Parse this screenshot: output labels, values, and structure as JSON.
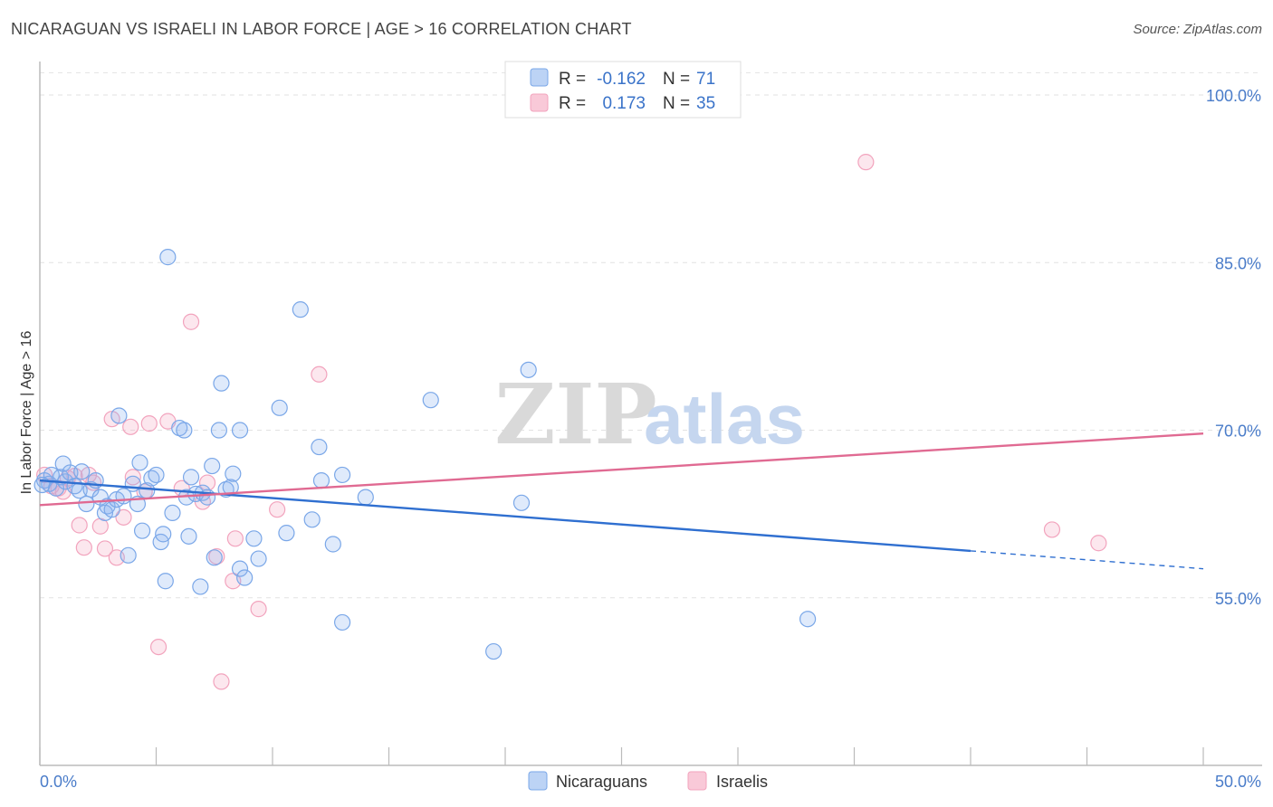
{
  "header": {
    "title": "NICARAGUAN VS ISRAELI IN LABOR FORCE | AGE > 16 CORRELATION CHART",
    "source": "Source: ZipAtlas.com"
  },
  "chart_data": {
    "type": "scatter",
    "title": "NICARAGUAN VS ISRAELI IN LABOR FORCE | AGE > 16 CORRELATION CHART",
    "ylabel": "In Labor Force | Age > 16",
    "xlim": [
      0,
      50
    ],
    "ylim": [
      40,
      103
    ],
    "x_tick_labels": [
      "0.0%",
      "50.0%"
    ],
    "y_ticks": [
      100,
      85,
      70,
      55
    ],
    "y_tick_labels": [
      "100.0%",
      "85.0%",
      "70.0%",
      "55.0%"
    ],
    "watermark": {
      "zip": "ZIP",
      "atlas": "atlas"
    },
    "legend": {
      "rows": [
        {
          "r_label": "R =",
          "r_value": "-0.162",
          "n_label": "N =",
          "n_value": "71"
        },
        {
          "r_label": "R =",
          "r_value": "0.173",
          "n_label": "N =",
          "n_value": "35"
        }
      ]
    },
    "series": [
      {
        "name": "Nicaraguans",
        "color": "#7aa7e8",
        "trend_color": "#2f6fd0",
        "trend": {
          "x0": 0,
          "y0": 65.5,
          "x1": 40,
          "y1": 59.2,
          "dash_to_x": 50,
          "dash_to_y": 57.6
        },
        "points": [
          [
            0.2,
            65.5
          ],
          [
            0.4,
            65.2
          ],
          [
            0.5,
            66.0
          ],
          [
            0.7,
            64.8
          ],
          [
            0.9,
            65.8
          ],
          [
            1.0,
            67.0
          ],
          [
            1.1,
            65.4
          ],
          [
            1.3,
            66.2
          ],
          [
            1.5,
            65.0
          ],
          [
            1.7,
            64.6
          ],
          [
            1.8,
            66.3
          ],
          [
            2.0,
            63.4
          ],
          [
            2.2,
            64.7
          ],
          [
            2.4,
            65.5
          ],
          [
            2.6,
            64.0
          ],
          [
            2.8,
            62.6
          ],
          [
            2.9,
            63.2
          ],
          [
            3.1,
            62.9
          ],
          [
            3.3,
            63.8
          ],
          [
            3.4,
            71.3
          ],
          [
            3.6,
            64.1
          ],
          [
            3.8,
            58.8
          ],
          [
            4.0,
            65.2
          ],
          [
            4.2,
            63.4
          ],
          [
            4.3,
            67.1
          ],
          [
            4.4,
            61.0
          ],
          [
            4.6,
            64.6
          ],
          [
            4.8,
            65.7
          ],
          [
            5.0,
            66.0
          ],
          [
            5.2,
            60.0
          ],
          [
            5.3,
            60.7
          ],
          [
            5.4,
            56.5
          ],
          [
            5.5,
            85.5
          ],
          [
            5.7,
            62.6
          ],
          [
            6.0,
            70.2
          ],
          [
            6.2,
            70.0
          ],
          [
            6.3,
            64.0
          ],
          [
            6.4,
            60.5
          ],
          [
            6.5,
            65.8
          ],
          [
            6.7,
            64.3
          ],
          [
            6.9,
            56.0
          ],
          [
            7.0,
            64.4
          ],
          [
            7.2,
            64.0
          ],
          [
            7.4,
            66.8
          ],
          [
            7.5,
            58.6
          ],
          [
            7.7,
            70.0
          ],
          [
            7.8,
            74.2
          ],
          [
            8.0,
            64.7
          ],
          [
            8.2,
            64.9
          ],
          [
            8.3,
            66.1
          ],
          [
            8.6,
            70.0
          ],
          [
            8.6,
            57.6
          ],
          [
            8.8,
            56.8
          ],
          [
            9.2,
            60.3
          ],
          [
            9.4,
            58.5
          ],
          [
            10.3,
            72.0
          ],
          [
            10.6,
            60.8
          ],
          [
            11.2,
            80.8
          ],
          [
            11.7,
            62.0
          ],
          [
            12.0,
            68.5
          ],
          [
            12.1,
            65.5
          ],
          [
            12.6,
            59.8
          ],
          [
            13.0,
            66.0
          ],
          [
            13.0,
            52.8
          ],
          [
            14.0,
            64.0
          ],
          [
            16.8,
            72.7
          ],
          [
            19.5,
            50.2
          ],
          [
            20.7,
            63.5
          ],
          [
            21.0,
            75.4
          ],
          [
            33.0,
            53.1
          ],
          [
            0.1,
            65.1
          ]
        ]
      },
      {
        "name": "Israelis",
        "color": "#f2a3bd",
        "trend_color": "#e06a92",
        "trend": {
          "x0": 0,
          "y0": 63.3,
          "x1": 50,
          "y1": 69.7
        },
        "points": [
          [
            0.2,
            66.0
          ],
          [
            0.5,
            65.0
          ],
          [
            0.8,
            64.8
          ],
          [
            1.0,
            64.5
          ],
          [
            1.2,
            65.7
          ],
          [
            1.5,
            65.9
          ],
          [
            1.7,
            61.5
          ],
          [
            1.9,
            59.5
          ],
          [
            2.1,
            66.0
          ],
          [
            2.3,
            65.3
          ],
          [
            2.6,
            61.4
          ],
          [
            2.8,
            59.4
          ],
          [
            3.1,
            71.0
          ],
          [
            3.3,
            58.6
          ],
          [
            3.6,
            62.2
          ],
          [
            3.9,
            70.3
          ],
          [
            4.0,
            65.8
          ],
          [
            4.5,
            64.5
          ],
          [
            4.7,
            70.6
          ],
          [
            5.1,
            50.6
          ],
          [
            5.5,
            70.8
          ],
          [
            6.1,
            64.8
          ],
          [
            6.5,
            79.7
          ],
          [
            7.0,
            63.6
          ],
          [
            7.2,
            65.3
          ],
          [
            7.6,
            58.7
          ],
          [
            7.8,
            47.5
          ],
          [
            8.3,
            56.5
          ],
          [
            8.4,
            60.3
          ],
          [
            9.4,
            54.0
          ],
          [
            10.2,
            62.9
          ],
          [
            12.0,
            75.0
          ],
          [
            35.5,
            94.0
          ],
          [
            43.5,
            61.1
          ],
          [
            45.5,
            59.9
          ]
        ]
      }
    ]
  }
}
